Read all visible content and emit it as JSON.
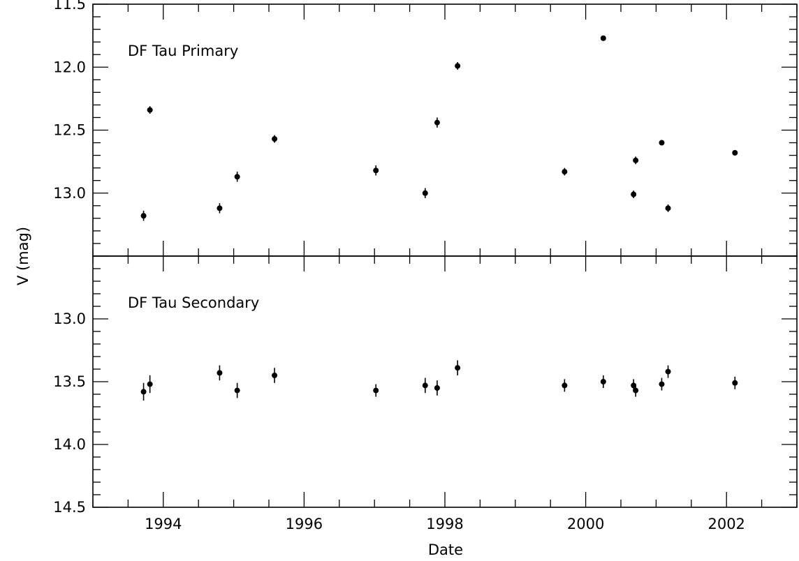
{
  "chart_data": {
    "type": "scatter",
    "xlabel": "Date",
    "ylabel": "V (mag)",
    "xlim": [
      1993.0,
      2003.0
    ],
    "x_ticks": [
      1994,
      1996,
      1998,
      2000,
      2002
    ],
    "x_tick_labels": [
      "1994",
      "1996",
      "1998",
      "2000",
      "2002"
    ],
    "y_axis_inverted": true,
    "panels": [
      {
        "label": "DF Tau Primary",
        "ylim": [
          13.5,
          11.5
        ],
        "y_ticks": [
          11.5,
          12.0,
          12.5,
          13.0
        ],
        "y_tick_labels": [
          "11.5",
          "12.0",
          "12.5",
          "13.0"
        ],
        "points": [
          {
            "x": 1993.72,
            "y": 13.18,
            "err": 0.04
          },
          {
            "x": 1993.81,
            "y": 12.34,
            "err": 0.03
          },
          {
            "x": 1994.8,
            "y": 13.12,
            "err": 0.04
          },
          {
            "x": 1995.05,
            "y": 12.87,
            "err": 0.04
          },
          {
            "x": 1995.58,
            "y": 12.57,
            "err": 0.03
          },
          {
            "x": 1997.02,
            "y": 12.82,
            "err": 0.04
          },
          {
            "x": 1997.72,
            "y": 13.0,
            "err": 0.04
          },
          {
            "x": 1997.89,
            "y": 12.44,
            "err": 0.04
          },
          {
            "x": 1998.18,
            "y": 11.99,
            "err": 0.03
          },
          {
            "x": 1999.7,
            "y": 12.83,
            "err": 0.03
          },
          {
            "x": 2000.25,
            "y": 11.77,
            "err": 0.0
          },
          {
            "x": 2000.68,
            "y": 13.01,
            "err": 0.03
          },
          {
            "x": 2000.71,
            "y": 12.74,
            "err": 0.03
          },
          {
            "x": 2001.08,
            "y": 12.6,
            "err": 0.02
          },
          {
            "x": 2001.17,
            "y": 13.12,
            "err": 0.03
          },
          {
            "x": 2002.12,
            "y": 12.68,
            "err": 0.02
          }
        ]
      },
      {
        "label": "DF Tau Secondary",
        "ylim": [
          14.5,
          12.5
        ],
        "y_ticks": [
          13.0,
          13.5,
          14.0,
          14.5
        ],
        "y_tick_labels": [
          "13.0",
          "13.5",
          "14.0",
          "14.5"
        ],
        "points": [
          {
            "x": 1993.72,
            "y": 13.58,
            "err": 0.07
          },
          {
            "x": 1993.81,
            "y": 13.52,
            "err": 0.07
          },
          {
            "x": 1994.8,
            "y": 13.43,
            "err": 0.06
          },
          {
            "x": 1995.05,
            "y": 13.57,
            "err": 0.06
          },
          {
            "x": 1995.58,
            "y": 13.45,
            "err": 0.06
          },
          {
            "x": 1997.02,
            "y": 13.57,
            "err": 0.05
          },
          {
            "x": 1997.72,
            "y": 13.53,
            "err": 0.06
          },
          {
            "x": 1997.89,
            "y": 13.55,
            "err": 0.06
          },
          {
            "x": 1998.18,
            "y": 13.39,
            "err": 0.06
          },
          {
            "x": 1999.7,
            "y": 13.53,
            "err": 0.05
          },
          {
            "x": 2000.25,
            "y": 13.5,
            "err": 0.05
          },
          {
            "x": 2000.68,
            "y": 13.53,
            "err": 0.05
          },
          {
            "x": 2000.71,
            "y": 13.57,
            "err": 0.05
          },
          {
            "x": 2001.08,
            "y": 13.52,
            "err": 0.05
          },
          {
            "x": 2001.17,
            "y": 13.42,
            "err": 0.05
          },
          {
            "x": 2002.12,
            "y": 13.51,
            "err": 0.05
          }
        ]
      }
    ]
  }
}
